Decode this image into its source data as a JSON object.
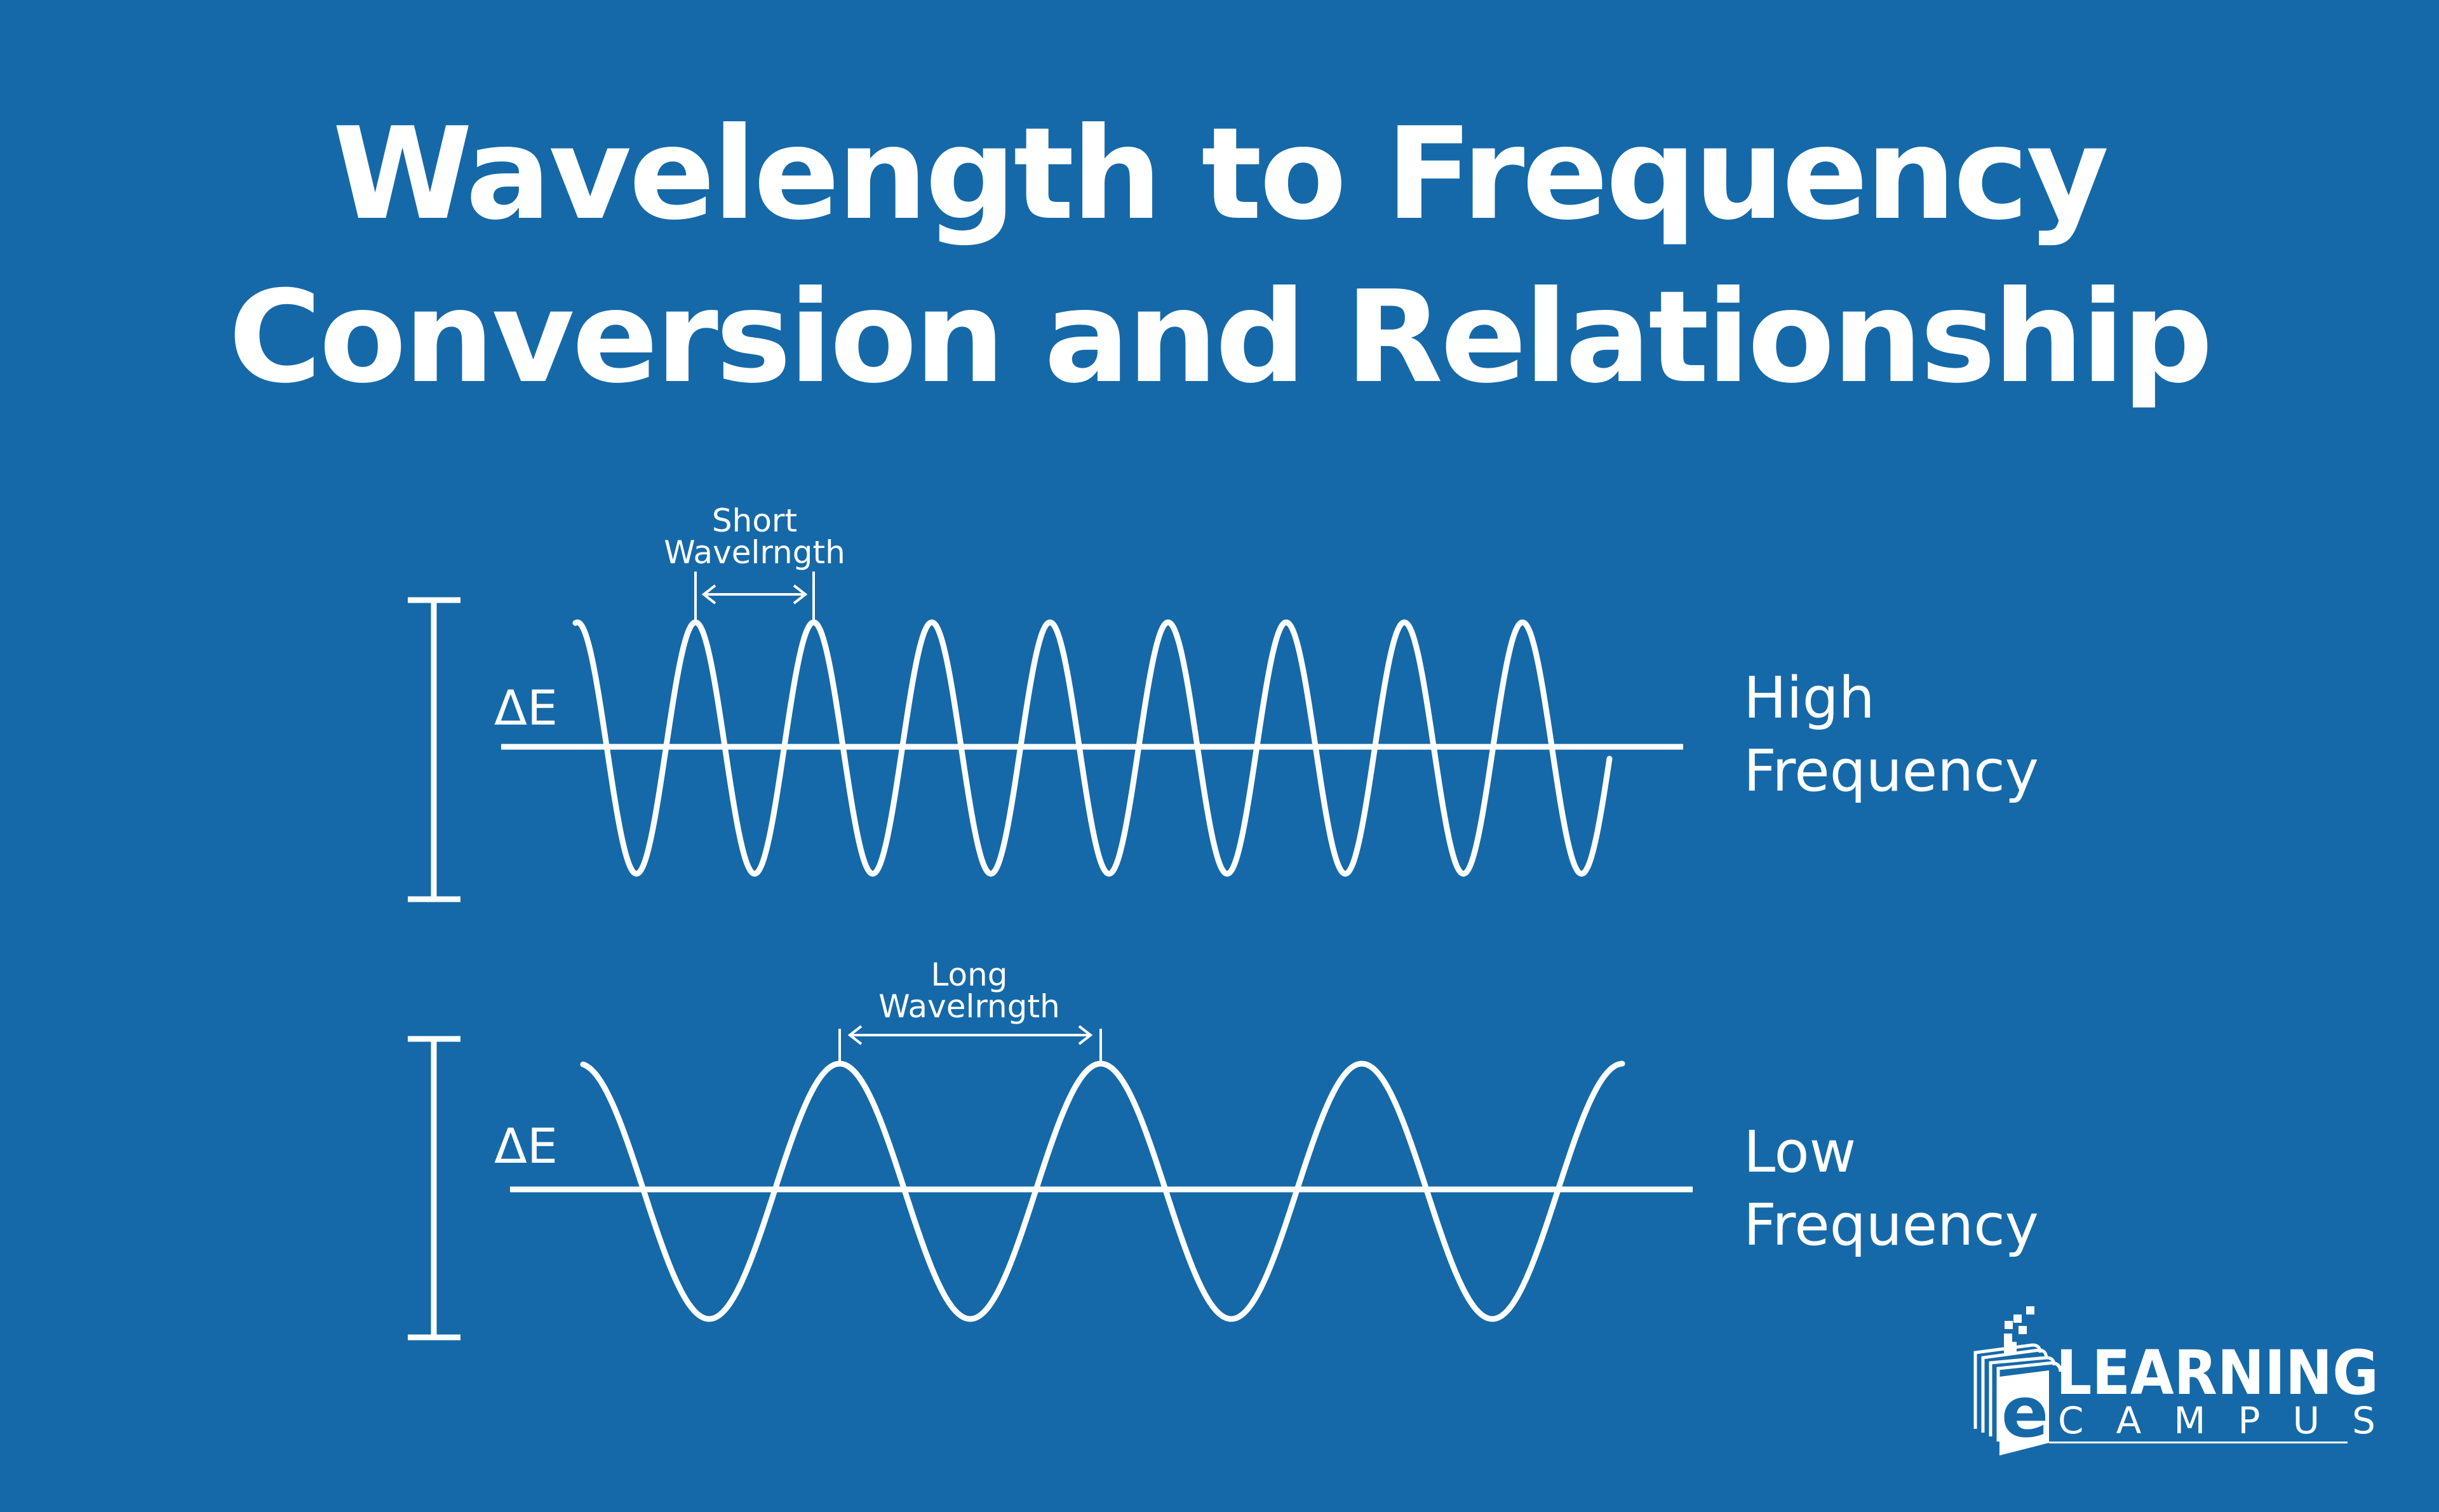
{
  "title": {
    "line1": "Wavelength to Frequency",
    "line2": "Conversion and Relationship"
  },
  "high_wave": {
    "energy_label": "ΔE",
    "wavelength_label_line1": "Short",
    "wavelength_label_line2": "Wavelrngth",
    "frequency_label_line1": "High",
    "frequency_label_line2": "Frequency"
  },
  "low_wave": {
    "energy_label": "ΔE",
    "wavelength_label_line1": "Long",
    "wavelength_label_line2": "Wavelrngth",
    "frequency_label_line1": "Low",
    "frequency_label_line2": "Frequency"
  },
  "logo": {
    "line1": "LEARNING",
    "line2": "CAMPUS",
    "letter": "e"
  },
  "colors": {
    "background": "#1669a8",
    "foreground": "#ffffff"
  }
}
